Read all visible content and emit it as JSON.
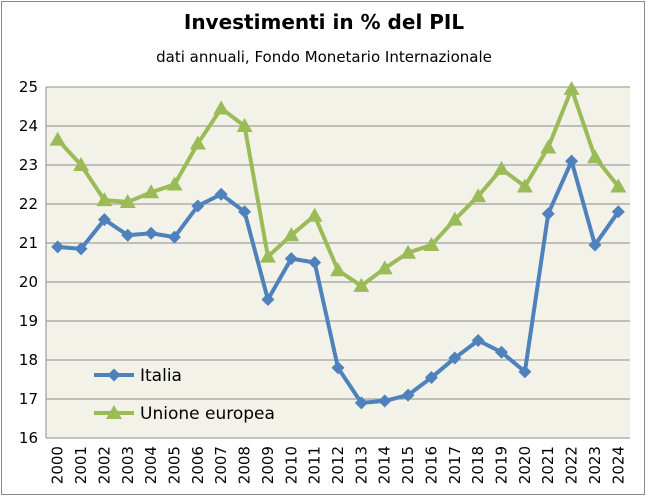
{
  "chart_data": {
    "type": "line",
    "title": "Investimenti in % del PIL",
    "subtitle": "dati annuali, Fondo Monetario Internazionale",
    "categories": [
      "2000",
      "2001",
      "2002",
      "2003",
      "2004",
      "2005",
      "2006",
      "2007",
      "2008",
      "2009",
      "2010",
      "2011",
      "2012",
      "2013",
      "2014",
      "2015",
      "2016",
      "2017",
      "2018",
      "2019",
      "2020",
      "2021",
      "2022",
      "2023",
      "2024"
    ],
    "ylim": [
      16,
      25
    ],
    "yticks": [
      "16",
      "17",
      "18",
      "19",
      "20",
      "21",
      "22",
      "23",
      "24",
      "25"
    ],
    "grid": true,
    "legend_position": "bottom-left",
    "series": [
      {
        "name": "Italia",
        "color": "#4f81bd",
        "marker": "diamond",
        "values": [
          20.9,
          20.85,
          21.6,
          21.2,
          21.25,
          21.15,
          21.95,
          22.25,
          21.8,
          19.55,
          20.6,
          20.5,
          17.8,
          16.9,
          16.95,
          17.1,
          17.55,
          18.05,
          18.5,
          18.2,
          17.7,
          21.75,
          23.1,
          20.95,
          21.8
        ]
      },
      {
        "name": "Unione europea",
        "color": "#9bbb59",
        "marker": "triangle",
        "values": [
          23.65,
          23.0,
          22.1,
          22.05,
          22.3,
          22.5,
          23.55,
          24.45,
          24.0,
          20.65,
          21.2,
          21.7,
          20.3,
          19.9,
          20.35,
          20.75,
          20.95,
          21.6,
          22.2,
          22.9,
          22.45,
          23.45,
          24.95,
          23.2,
          22.45
        ]
      }
    ]
  },
  "colors": {
    "plot_background": "#f2f2e8",
    "gridline": "#8c8c8c"
  }
}
